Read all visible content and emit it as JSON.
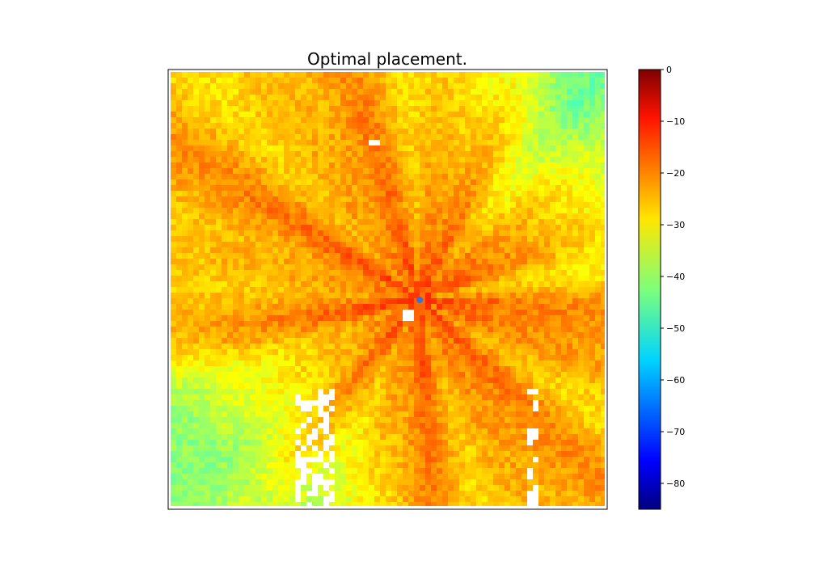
{
  "chart_data": {
    "type": "heatmap",
    "title": "Optimal placement.",
    "xlabel": "",
    "ylabel": "",
    "axis_ticks_visible": false,
    "colormap": "jet",
    "colorbar": {
      "range": [
        -85,
        0
      ],
      "ticks": [
        0,
        -10,
        -20,
        -30,
        -40,
        -50,
        -60,
        -70,
        -80
      ],
      "tick_labels": [
        "0",
        "−10",
        "−20",
        "−30",
        "−40",
        "−50",
        "−60",
        "−70",
        "−80"
      ],
      "position": "right"
    },
    "values_description_free": false,
    "field": {
      "source_value": -14,
      "typical_far_value": -30,
      "lower_left_value": -42,
      "min_observed": -50
    },
    "marker": {
      "label": "",
      "color": "#3b6fd1",
      "x_frac": 0.572,
      "y_frac": 0.522
    },
    "missing_regions_color": "#ffffff"
  }
}
